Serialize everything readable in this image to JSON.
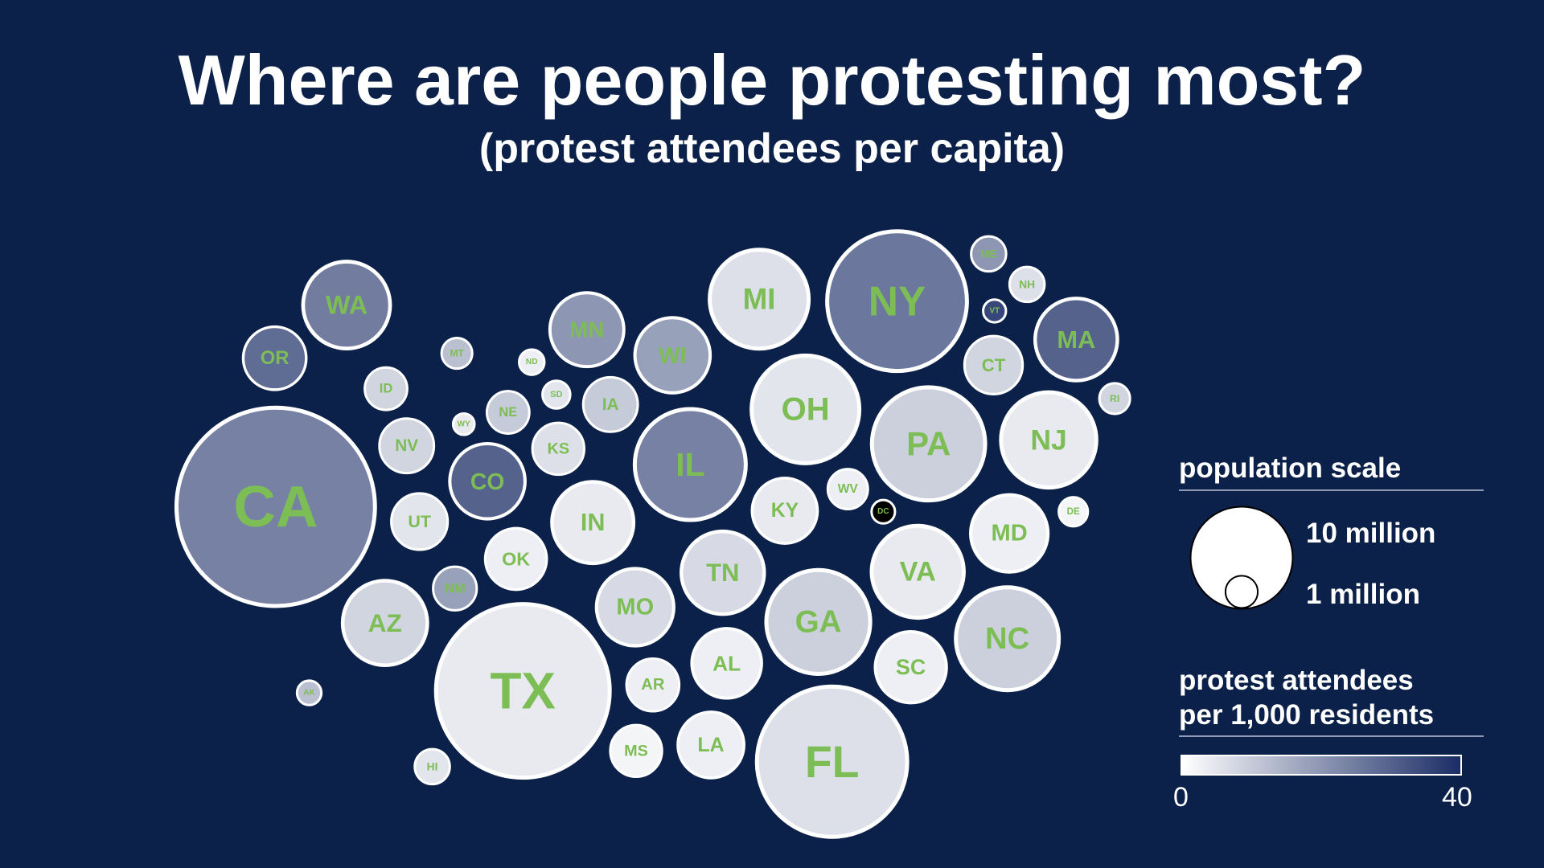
{
  "chart_data": {
    "type": "bubble-map",
    "title": "Where are people protesting most?",
    "subtitle": "(protest attendees per capita)",
    "size_legend": {
      "title": "population scale",
      "labels": [
        "10 million",
        "1 million"
      ],
      "values_millions": [
        10,
        1
      ]
    },
    "color_legend": {
      "title_line1": "protest attendees",
      "title_line2": "per 1,000 residents",
      "min_label": "0",
      "max_label": "40",
      "range": [
        0,
        40
      ],
      "low_color": "#ffffff",
      "high_color": "#1b2d66",
      "off_scale_color": "#000000"
    },
    "colors": {
      "background": "#0b2149",
      "label": "#7dbd55",
      "stroke": "#ffffff"
    },
    "states": [
      {
        "label": "WA",
        "population_millions": 7.8,
        "protest_per_1000": 25
      },
      {
        "label": "OR",
        "population_millions": 4.2,
        "protest_per_1000": 28
      },
      {
        "label": "CA",
        "population_millions": 39,
        "protest_per_1000": 24
      },
      {
        "label": "ID",
        "population_millions": 2,
        "protest_per_1000": 8
      },
      {
        "label": "MT",
        "population_millions": 1.1,
        "protest_per_1000": 12
      },
      {
        "label": "NV",
        "population_millions": 3.2,
        "protest_per_1000": 8
      },
      {
        "label": "WY",
        "population_millions": 0.58,
        "protest_per_1000": 4
      },
      {
        "label": "UT",
        "population_millions": 3.4,
        "protest_per_1000": 5
      },
      {
        "label": "AZ",
        "population_millions": 7.4,
        "protest_per_1000": 8
      },
      {
        "label": "NM",
        "population_millions": 2.1,
        "protest_per_1000": 18
      },
      {
        "label": "AK",
        "population_millions": 0.73,
        "protest_per_1000": 12
      },
      {
        "label": "HI",
        "population_millions": 1.4,
        "protest_per_1000": 5
      },
      {
        "label": "CO",
        "population_millions": 5.9,
        "protest_per_1000": 30
      },
      {
        "label": "ND",
        "population_millions": 0.78,
        "protest_per_1000": 3
      },
      {
        "label": "SD",
        "population_millions": 0.92,
        "protest_per_1000": 5
      },
      {
        "label": "NE",
        "population_millions": 2,
        "protest_per_1000": 10
      },
      {
        "label": "KS",
        "population_millions": 2.9,
        "protest_per_1000": 6
      },
      {
        "label": "OK",
        "population_millions": 4,
        "protest_per_1000": 3
      },
      {
        "label": "TX",
        "population_millions": 30,
        "protest_per_1000": 4
      },
      {
        "label": "MN",
        "population_millions": 5.7,
        "protest_per_1000": 20
      },
      {
        "label": "IA",
        "population_millions": 3.2,
        "protest_per_1000": 10
      },
      {
        "label": "MO",
        "population_millions": 6.2,
        "protest_per_1000": 7
      },
      {
        "label": "AR",
        "population_millions": 3,
        "protest_per_1000": 3
      },
      {
        "label": "LA",
        "population_millions": 4.6,
        "protest_per_1000": 3
      },
      {
        "label": "MS",
        "population_millions": 2.9,
        "protest_per_1000": 2
      },
      {
        "label": "WI",
        "population_millions": 5.9,
        "protest_per_1000": 18
      },
      {
        "label": "IL",
        "population_millions": 12.5,
        "protest_per_1000": 24
      },
      {
        "label": "IN",
        "population_millions": 6.9,
        "protest_per_1000": 4
      },
      {
        "label": "MI",
        "population_millions": 10,
        "protest_per_1000": 6
      },
      {
        "label": "OH",
        "population_millions": 11.8,
        "protest_per_1000": 5
      },
      {
        "label": "KY",
        "population_millions": 4.5,
        "protest_per_1000": 4
      },
      {
        "label": "TN",
        "population_millions": 7.1,
        "protest_per_1000": 7
      },
      {
        "label": "AL",
        "population_millions": 5.1,
        "protest_per_1000": 3
      },
      {
        "label": "GA",
        "population_millions": 11,
        "protest_per_1000": 9
      },
      {
        "label": "FL",
        "population_millions": 22.6,
        "protest_per_1000": 6
      },
      {
        "label": "WV",
        "population_millions": 1.8,
        "protest_per_1000": 3
      },
      {
        "label": "DC",
        "population_millions": 0.68,
        "protest_per_1000": 60
      },
      {
        "label": "VA",
        "population_millions": 8.7,
        "protest_per_1000": 4
      },
      {
        "label": "SC",
        "population_millions": 5.3,
        "protest_per_1000": 3
      },
      {
        "label": "NC",
        "population_millions": 10.8,
        "protest_per_1000": 9
      },
      {
        "label": "MD",
        "population_millions": 6.2,
        "protest_per_1000": 3
      },
      {
        "label": "DE",
        "population_millions": 1,
        "protest_per_1000": 2
      },
      {
        "label": "PA",
        "population_millions": 13,
        "protest_per_1000": 9
      },
      {
        "label": "NJ",
        "population_millions": 9.3,
        "protest_per_1000": 4
      },
      {
        "label": "NY",
        "population_millions": 19.6,
        "protest_per_1000": 26
      },
      {
        "label": "CT",
        "population_millions": 3.6,
        "protest_per_1000": 8
      },
      {
        "label": "RI",
        "population_millions": 1.1,
        "protest_per_1000": 8
      },
      {
        "label": "MA",
        "population_millions": 7,
        "protest_per_1000": 30
      },
      {
        "label": "VT",
        "population_millions": 0.65,
        "protest_per_1000": 35
      },
      {
        "label": "NH",
        "population_millions": 1.4,
        "protest_per_1000": 6
      },
      {
        "label": "ME",
        "population_millions": 1.4,
        "protest_per_1000": 20
      }
    ]
  }
}
